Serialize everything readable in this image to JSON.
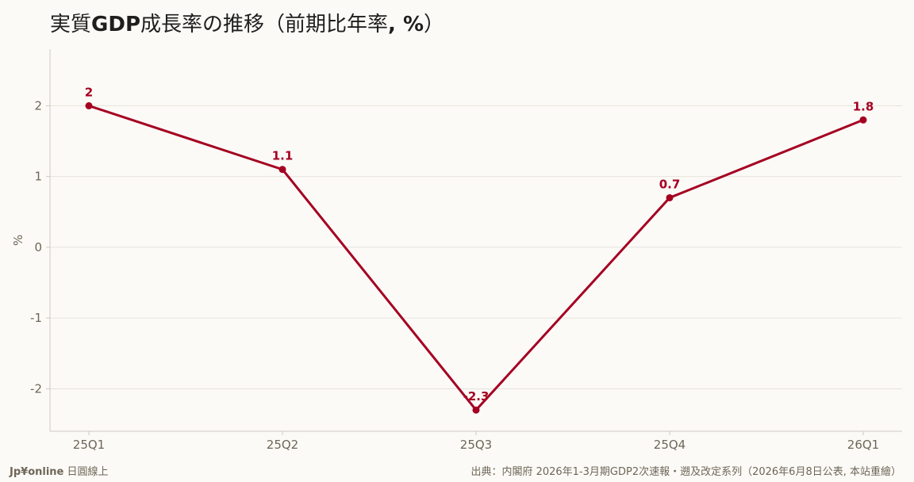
{
  "title": {
    "part1": "実質",
    "part2": "GDP",
    "part3": "成長率の推移（前期比年率",
    "part4": ", %",
    "part5": "）"
  },
  "footer": {
    "brand": "Jp¥online",
    "brand_suffix": "日圓線上",
    "source": "出典：内閣府 2026年1-3月期GDP2次速報・遡及改定系列（2026年6月8日公表, 本站重繪）"
  },
  "colors": {
    "line": "#a50021",
    "axis_text": "#6f6656",
    "grid": "#e7e3db",
    "axis_line": "#cfcac0"
  },
  "chart_data": {
    "type": "line",
    "categories": [
      "25Q1",
      "25Q2",
      "25Q3",
      "25Q4",
      "26Q1"
    ],
    "series": [
      {
        "values": [
          2,
          1.1,
          -2.3,
          0.7,
          1.8
        ],
        "labels": [
          "2",
          "1.1",
          "-2.3",
          "0.7",
          "1.8"
        ]
      }
    ],
    "ylabel": "%",
    "yticks": [
      2,
      1,
      0,
      -1,
      -2
    ],
    "ytick_labels": [
      "2",
      "1",
      "0",
      "-1",
      "-2"
    ],
    "ylim": [
      -2.6,
      2.8
    ],
    "grid": true
  }
}
